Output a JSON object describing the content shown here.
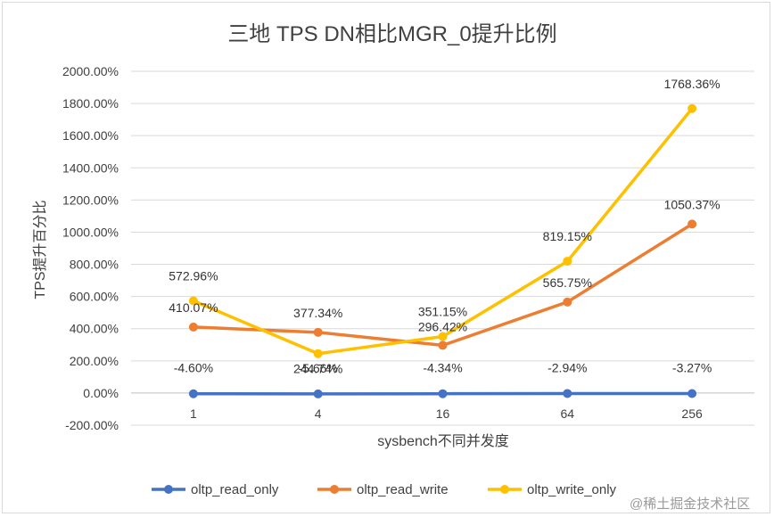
{
  "chart_data": {
    "type": "line",
    "title": "三地 TPS DN相比MGR_0提升比例",
    "xlabel": "sysbench不同并发度",
    "ylabel": "TPS提升百分比",
    "categories": [
      "1",
      "4",
      "16",
      "64",
      "256"
    ],
    "ylim": [
      -200,
      2000
    ],
    "yticks": [
      -200,
      0,
      200,
      400,
      600,
      800,
      1000,
      1200,
      1400,
      1600,
      1800,
      2000
    ],
    "ytick_labels": [
      "-200.00%",
      "0.00%",
      "200.00%",
      "400.00%",
      "600.00%",
      "800.00%",
      "1000.00%",
      "1200.00%",
      "1400.00%",
      "1600.00%",
      "1800.00%",
      "2000.00%"
    ],
    "grid": true,
    "legend_position": "bottom",
    "series": [
      {
        "name": "oltp_read_only",
        "color": "#4472C4",
        "values": [
          -4.6,
          -5.66,
          -4.34,
          -2.94,
          -3.27
        ],
        "labels": [
          "-4.60%",
          "-5.66%",
          "-4.34%",
          "-2.94%",
          "-3.27%"
        ]
      },
      {
        "name": "oltp_read_write",
        "color": "#ED7D31",
        "values": [
          410.07,
          377.34,
          296.42,
          565.75,
          1050.37
        ],
        "labels": [
          "410.07%",
          "377.34%",
          "296.42%",
          "565.75%",
          "1050.37%"
        ]
      },
      {
        "name": "oltp_write_only",
        "color": "#FFC000",
        "values": [
          572.96,
          244.74,
          351.15,
          819.15,
          1768.36
        ],
        "labels": [
          "572.96%",
          "244.74%",
          "351.15%",
          "819.15%",
          "1768.36%"
        ]
      }
    ]
  },
  "watermark": "@稀土掘金技术社区"
}
